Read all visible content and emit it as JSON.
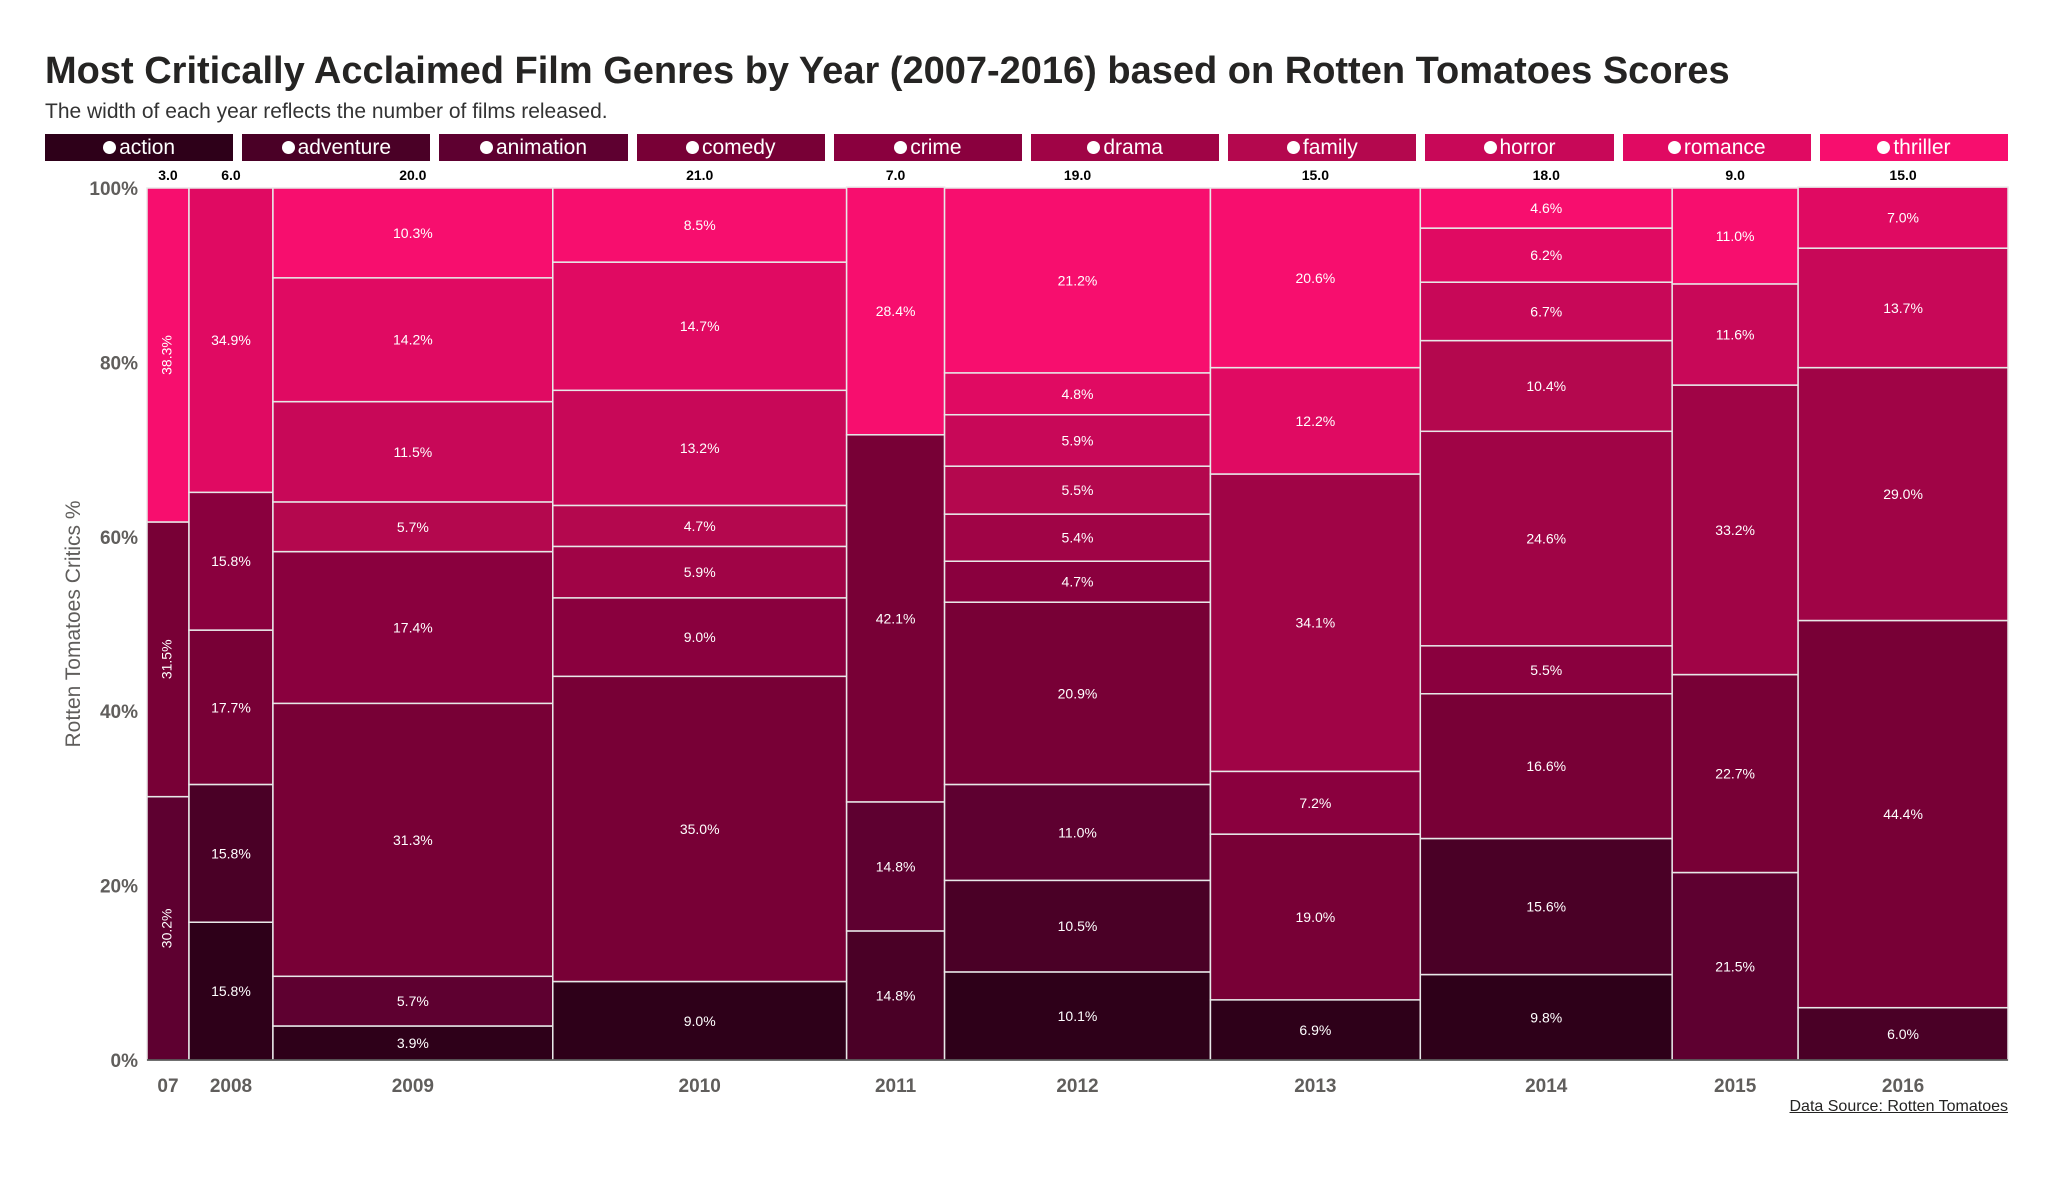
{
  "title": "Most Critically Acclaimed Film Genres by Year (2007-2016) based on Rotten Tomatoes Scores",
  "subtitle": "The width of each year reflects the number of films released.",
  "source": "Data Source: Rotten Tomatoes",
  "chart_data": {
    "type": "marimekko",
    "title": "Most Critically Acclaimed Film Genres by Year (2007-2016) based on Rotten Tomatoes Scores",
    "ylabel": "Rotten Tomatoes Critics %",
    "ylim": [
      0,
      100
    ],
    "yticks": [
      "0%",
      "20%",
      "40%",
      "60%",
      "80%",
      "100%"
    ],
    "legend_position": "top",
    "genres": [
      "action",
      "adventure",
      "animation",
      "comedy",
      "crime",
      "drama",
      "family",
      "horror",
      "romance",
      "thriller"
    ],
    "colors": {
      "action": "#2e0019",
      "adventure": "#4a0026",
      "animation": "#5e0030",
      "comedy": "#780036",
      "crime": "#8a003e",
      "drama": "#a00446",
      "family": "#b4084e",
      "horror": "#c80858",
      "romance": "#e00a62",
      "thriller": "#f70e6e"
    },
    "years": [
      {
        "label": "07",
        "films": "3.0",
        "count": 3,
        "segments": [
          {
            "genre": "animation",
            "value": 30.2,
            "label": "30.2%"
          },
          {
            "genre": "comedy",
            "value": 31.5,
            "label": "31.5%"
          },
          {
            "genre": "thriller",
            "value": 38.3,
            "label": "38.3%"
          }
        ]
      },
      {
        "label": "2008",
        "films": "6.0",
        "count": 6,
        "segments": [
          {
            "genre": "action",
            "value": 15.8,
            "label": "15.8%"
          },
          {
            "genre": "adventure",
            "value": 15.8,
            "label": "15.8%"
          },
          {
            "genre": "comedy",
            "value": 17.7,
            "label": "17.7%"
          },
          {
            "genre": "crime",
            "value": 15.8,
            "label": "15.8%"
          },
          {
            "genre": "romance",
            "value": 34.9,
            "label": "34.9%"
          }
        ]
      },
      {
        "label": "2009",
        "films": "20.0",
        "count": 20,
        "segments": [
          {
            "genre": "action",
            "value": 3.9,
            "label": "3.9%"
          },
          {
            "genre": "animation",
            "value": 5.7,
            "label": "5.7%"
          },
          {
            "genre": "comedy",
            "value": 31.3,
            "label": "31.3%"
          },
          {
            "genre": "crime",
            "value": 17.4,
            "label": "17.4%"
          },
          {
            "genre": "family",
            "value": 5.7,
            "label": "5.7%"
          },
          {
            "genre": "horror",
            "value": 11.5,
            "label": "11.5%"
          },
          {
            "genre": "romance",
            "value": 14.2,
            "label": "14.2%"
          },
          {
            "genre": "thriller",
            "value": 10.3,
            "label": "10.3%"
          }
        ]
      },
      {
        "label": "2010",
        "films": "21.0",
        "count": 21,
        "segments": [
          {
            "genre": "action",
            "value": 9.0,
            "label": "9.0%"
          },
          {
            "genre": "comedy",
            "value": 35.0,
            "label": "35.0%"
          },
          {
            "genre": "crime",
            "value": 9.0,
            "label": "9.0%"
          },
          {
            "genre": "drama",
            "value": 5.9,
            "label": "5.9%"
          },
          {
            "genre": "family",
            "value": 4.7,
            "label": "4.7%"
          },
          {
            "genre": "horror",
            "value": 13.2,
            "label": "13.2%"
          },
          {
            "genre": "romance",
            "value": 14.7,
            "label": "14.7%"
          },
          {
            "genre": "thriller",
            "value": 8.5,
            "label": "8.5%"
          }
        ]
      },
      {
        "label": "2011",
        "films": "7.0",
        "count": 7,
        "segments": [
          {
            "genre": "adventure",
            "value": 14.8,
            "label": "14.8%"
          },
          {
            "genre": "animation",
            "value": 14.8,
            "label": "14.8%"
          },
          {
            "genre": "comedy",
            "value": 42.1,
            "label": "42.1%"
          },
          {
            "genre": "thriller",
            "value": 28.4,
            "label": "28.4%"
          }
        ]
      },
      {
        "label": "2012",
        "films": "19.0",
        "count": 19,
        "segments": [
          {
            "genre": "action",
            "value": 10.1,
            "label": "10.1%"
          },
          {
            "genre": "adventure",
            "value": 10.5,
            "label": "10.5%"
          },
          {
            "genre": "animation",
            "value": 11.0,
            "label": "11.0%"
          },
          {
            "genre": "comedy",
            "value": 20.9,
            "label": "20.9%"
          },
          {
            "genre": "crime",
            "value": 4.7,
            "label": "4.7%"
          },
          {
            "genre": "drama",
            "value": 5.4,
            "label": "5.4%"
          },
          {
            "genre": "family",
            "value": 5.5,
            "label": "5.5%"
          },
          {
            "genre": "horror",
            "value": 5.9,
            "label": "5.9%"
          },
          {
            "genre": "romance",
            "value": 4.8,
            "label": "4.8%"
          },
          {
            "genre": "thriller",
            "value": 21.2,
            "label": "21.2%"
          }
        ]
      },
      {
        "label": "2013",
        "films": "15.0",
        "count": 15,
        "segments": [
          {
            "genre": "action",
            "value": 6.9,
            "label": "6.9%"
          },
          {
            "genre": "comedy",
            "value": 19.0,
            "label": "19.0%"
          },
          {
            "genre": "crime",
            "value": 7.2,
            "label": "7.2%"
          },
          {
            "genre": "drama",
            "value": 34.1,
            "label": "34.1%"
          },
          {
            "genre": "romance",
            "value": 12.2,
            "label": "12.2%"
          },
          {
            "genre": "thriller",
            "value": 20.6,
            "label": "20.6%"
          }
        ]
      },
      {
        "label": "2014",
        "films": "18.0",
        "count": 18,
        "segments": [
          {
            "genre": "action",
            "value": 9.8,
            "label": "9.8%"
          },
          {
            "genre": "adventure",
            "value": 15.6,
            "label": "15.6%"
          },
          {
            "genre": "comedy",
            "value": 16.6,
            "label": "16.6%"
          },
          {
            "genre": "crime",
            "value": 5.5,
            "label": "5.5%"
          },
          {
            "genre": "drama",
            "value": 24.6,
            "label": "24.6%"
          },
          {
            "genre": "family",
            "value": 10.4,
            "label": "10.4%"
          },
          {
            "genre": "horror",
            "value": 6.7,
            "label": "6.7%"
          },
          {
            "genre": "romance",
            "value": 6.2,
            "label": "6.2%"
          },
          {
            "genre": "thriller",
            "value": 4.6,
            "label": "4.6%"
          }
        ]
      },
      {
        "label": "2015",
        "films": "9.0",
        "count": 9,
        "segments": [
          {
            "genre": "animation",
            "value": 21.5,
            "label": "21.5%"
          },
          {
            "genre": "comedy",
            "value": 22.7,
            "label": "22.7%"
          },
          {
            "genre": "drama",
            "value": 33.2,
            "label": "33.2%"
          },
          {
            "genre": "horror",
            "value": 11.6,
            "label": "11.6%"
          },
          {
            "genre": "thriller",
            "value": 11.0,
            "label": "11.0%"
          }
        ]
      },
      {
        "label": "2016",
        "films": "15.0",
        "count": 15,
        "segments": [
          {
            "genre": "adventure",
            "value": 6.0,
            "label": "6.0%"
          },
          {
            "genre": "comedy",
            "value": 44.4,
            "label": "44.4%"
          },
          {
            "genre": "drama",
            "value": 29.0,
            "label": "29.0%"
          },
          {
            "genre": "horror",
            "value": 13.7,
            "label": "13.7%"
          },
          {
            "genre": "romance",
            "value": 7.0,
            "label": "7.0%"
          }
        ]
      }
    ]
  }
}
